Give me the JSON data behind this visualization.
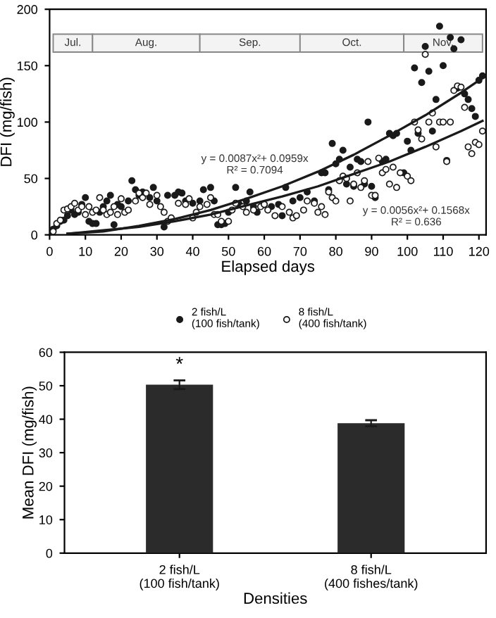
{
  "chart_data": [
    {
      "type": "scatter",
      "xlabel": "Elapsed days",
      "ylabel": "DFI (mg/fish)",
      "xlim": [
        0,
        122
      ],
      "ylim": [
        0,
        200
      ],
      "xticks": [
        0,
        10,
        20,
        30,
        40,
        50,
        60,
        70,
        80,
        90,
        100,
        110,
        120
      ],
      "yticks": [
        0,
        50,
        100,
        150,
        200
      ],
      "grid": false,
      "legend": "bottom",
      "marker": "circle",
      "series": [
        {
          "name": "2 fish/L\n(100 fish/tank)",
          "color": "#1a1a1a",
          "type": "scatter",
          "x": [
            0,
            1,
            2,
            3,
            4,
            5,
            6,
            7,
            8,
            9,
            10,
            11,
            12,
            13,
            14,
            15,
            16,
            17,
            18,
            19,
            20,
            22,
            23,
            24,
            25,
            26,
            28,
            29,
            30,
            32,
            33,
            35,
            36,
            37,
            38,
            40,
            42,
            43,
            45,
            46,
            47,
            48,
            49,
            50,
            52,
            53,
            55,
            56,
            57,
            58,
            60,
            62,
            64,
            65,
            66,
            68,
            70,
            72,
            74,
            76,
            77,
            78,
            79,
            80,
            81,
            82,
            83,
            84,
            85,
            86,
            87,
            88,
            89,
            90,
            91,
            93,
            94,
            95,
            96,
            97,
            99,
            100,
            101,
            102,
            103,
            104,
            105,
            106,
            107,
            108,
            109,
            110,
            111,
            112,
            113,
            114,
            115,
            116,
            117,
            118,
            119,
            120,
            121
          ],
          "values": [
            0,
            5,
            8,
            12,
            13,
            17,
            22,
            18,
            20,
            27,
            33,
            12,
            10,
            10,
            20,
            25,
            30,
            35,
            9,
            27,
            25,
            30,
            48,
            40,
            35,
            38,
            33,
            42,
            30,
            7,
            35,
            35,
            38,
            37,
            30,
            28,
            30,
            40,
            42,
            30,
            9,
            9,
            10,
            20,
            42,
            27,
            30,
            38,
            25,
            20,
            27,
            25,
            27,
            17,
            42,
            30,
            33,
            38,
            30,
            55,
            55,
            40,
            81,
            63,
            67,
            75,
            45,
            60,
            43,
            67,
            65,
            45,
            100,
            43,
            33,
            65,
            67,
            90,
            88,
            90,
            55,
            83,
            75,
            148,
            90,
            135,
            167,
            145,
            92,
            120,
            185,
            150,
            66,
            175,
            165,
            130,
            173,
            125,
            120,
            112,
            105,
            137,
            141
          ]
        },
        {
          "name": "8 fish/L\n(400 fish/tank)",
          "color": "#ffffff",
          "type": "scatter",
          "x": [
            1,
            2,
            3,
            4,
            5,
            6,
            7,
            8,
            9,
            10,
            11,
            12,
            13,
            14,
            15,
            16,
            17,
            18,
            19,
            20,
            21,
            22,
            24,
            25,
            26,
            27,
            28,
            30,
            31,
            32,
            33,
            34,
            36,
            38,
            39,
            40,
            41,
            42,
            44,
            45,
            46,
            47,
            48,
            50,
            51,
            52,
            54,
            55,
            57,
            59,
            60,
            61,
            63,
            65,
            67,
            68,
            69,
            71,
            72,
            74,
            75,
            76,
            77,
            78,
            79,
            80,
            81,
            82,
            83,
            84,
            85,
            86,
            87,
            88,
            89,
            90,
            91,
            92,
            93,
            94,
            95,
            96,
            97,
            98,
            100,
            101,
            102,
            103,
            104,
            105,
            106,
            107,
            108,
            109,
            110,
            111,
            112,
            113,
            114,
            115,
            116,
            117,
            118,
            119,
            120,
            121
          ],
          "values": [
            3,
            10,
            13,
            22,
            23,
            25,
            28,
            22,
            25,
            18,
            25,
            20,
            22,
            33,
            22,
            18,
            20,
            25,
            18,
            32,
            20,
            22,
            30,
            37,
            33,
            37,
            27,
            35,
            25,
            20,
            12,
            15,
            28,
            27,
            32,
            15,
            20,
            25,
            27,
            33,
            18,
            18,
            12,
            12,
            22,
            28,
            25,
            20,
            22,
            25,
            27,
            22,
            17,
            25,
            20,
            15,
            17,
            22,
            30,
            28,
            20,
            25,
            18,
            38,
            33,
            30,
            48,
            52,
            50,
            30,
            45,
            55,
            42,
            48,
            65,
            35,
            35,
            68,
            55,
            58,
            45,
            60,
            42,
            55,
            52,
            48,
            100,
            93,
            85,
            160,
            100,
            108,
            78,
            100,
            100,
            65,
            100,
            128,
            132,
            131,
            113,
            78,
            72,
            82,
            80,
            92
          ]
        },
        {
          "type": "line",
          "marker": "none",
          "color": "#1a1a1a",
          "x": [
            5,
            15,
            25,
            35,
            45,
            55,
            65,
            75,
            85,
            95,
            105,
            115,
            121
          ],
          "values": [
            1,
            3,
            8,
            14,
            22,
            32,
            43,
            56,
            71,
            88,
            106,
            126,
            139
          ]
        },
        {
          "type": "line",
          "marker": "none",
          "color": "#1a1a1a",
          "x": [
            5,
            15,
            25,
            35,
            45,
            55,
            65,
            75,
            85,
            95,
            105,
            115,
            121
          ],
          "values": [
            1,
            4,
            7,
            12,
            18,
            26,
            34,
            43,
            54,
            65,
            78,
            92,
            101
          ]
        }
      ],
      "bands": [
        {
          "axis": "x",
          "from": 1,
          "to": 12,
          "label": "Jul."
        },
        {
          "axis": "x",
          "from": 12,
          "to": 42,
          "label": "Aug."
        },
        {
          "axis": "x",
          "from": 42,
          "to": 70,
          "label": "Sep."
        },
        {
          "axis": "x",
          "from": 70,
          "to": 99,
          "label": "Oct."
        },
        {
          "axis": "x",
          "from": 99,
          "to": 121,
          "label": "Nov."
        }
      ],
      "annotations": [
        "y = 0.0087x²+ 0.0959x\nR² = 0.7094",
        "y = 0.0056x²+ 0.1568x\nR² = 0.636"
      ]
    },
    {
      "type": "bar",
      "xlabel": "Densities",
      "ylabel": "Mean DFI (mg/fish)",
      "categories": [
        "2 fish/L\n(100 fish/tank)",
        "8 fish/L\n(400 fishes/tank)"
      ],
      "values": [
        50.3,
        38.8
      ],
      "errors": [
        1.3,
        0.9
      ],
      "color": "#2b2b2b",
      "ylim": [
        0,
        60
      ],
      "yticks": [
        0,
        10,
        20,
        30,
        40,
        50,
        60
      ],
      "grid": false,
      "annotations": [
        "*"
      ]
    }
  ]
}
